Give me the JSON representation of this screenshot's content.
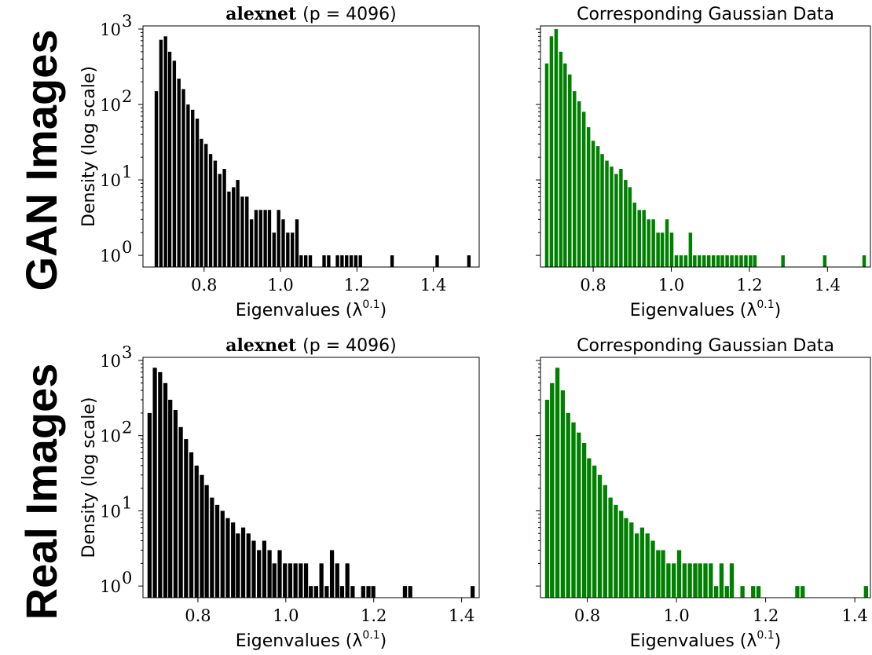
{
  "row_labels": [
    "GAN Images",
    "Real Images"
  ],
  "colors": {
    "real_bars": "#000000",
    "gaussian_bars": "#008000"
  },
  "chart_data": [
    {
      "type": "bar",
      "title_bold": "alexnet",
      "title_rest": "(p = 4096)",
      "xlabel": "Eigenvalues (λ",
      "xlabel_sup": "0.1",
      "xlabel_end": ")",
      "ylabel": "Density (log scale)",
      "yscale": "log",
      "ylim": [
        0.7,
        1100
      ],
      "xlim": [
        0.64,
        1.52
      ],
      "xticks": [
        0.8,
        1.0,
        1.2,
        1.4
      ],
      "xtick_labels": [
        "0.8",
        "1.0",
        "1.2",
        "1.4"
      ],
      "yticks": [
        1,
        10,
        100,
        1000
      ],
      "ytick_labels": [
        [
          "10",
          "0"
        ],
        [
          "10",
          "1"
        ],
        [
          "10",
          "2"
        ],
        [
          "10",
          "3"
        ]
      ],
      "color": "#000000",
      "bin_width": 0.01185,
      "x": [
        0.675,
        0.687,
        0.699,
        0.71,
        0.722,
        0.734,
        0.746,
        0.758,
        0.77,
        0.782,
        0.793,
        0.805,
        0.817,
        0.829,
        0.841,
        0.853,
        0.865,
        0.877,
        0.888,
        0.9,
        0.912,
        0.924,
        0.936,
        0.948,
        0.96,
        0.971,
        0.983,
        0.995,
        1.007,
        1.019,
        1.031,
        1.043,
        1.054,
        1.066,
        1.078,
        1.09,
        1.102,
        1.114,
        1.126,
        1.138,
        1.149,
        1.161,
        1.173,
        1.185,
        1.197,
        1.209,
        1.292,
        1.41,
        1.493
      ],
      "values": [
        150,
        720,
        800,
        500,
        380,
        220,
        160,
        100,
        85,
        65,
        35,
        30,
        22,
        18,
        12,
        14,
        7,
        8,
        10,
        6,
        6,
        3,
        4,
        4,
        4,
        4,
        2,
        4,
        3,
        2,
        2,
        3,
        1,
        1,
        1,
        0,
        0,
        1,
        1,
        0,
        1,
        1,
        1,
        1,
        1,
        1,
        1,
        1,
        1
      ]
    },
    {
      "type": "bar",
      "title": "Corresponding Gaussian Data",
      "xlabel": "Eigenvalues (λ",
      "xlabel_sup": "0.1",
      "xlabel_end": ")",
      "yscale": "log",
      "ylim": [
        0.7,
        1100
      ],
      "xlim": [
        0.665,
        1.51
      ],
      "xticks": [
        0.8,
        1.0,
        1.2,
        1.4
      ],
      "xtick_labels": [
        "0.8",
        "1.0",
        "1.2",
        "1.4"
      ],
      "yticks": [
        1,
        10,
        100,
        1000
      ],
      "color": "#008000",
      "bin_width": 0.01185,
      "x": [
        0.681,
        0.693,
        0.705,
        0.717,
        0.728,
        0.74,
        0.752,
        0.764,
        0.776,
        0.788,
        0.8,
        0.812,
        0.823,
        0.835,
        0.847,
        0.859,
        0.871,
        0.883,
        0.894,
        0.906,
        0.918,
        0.93,
        0.942,
        0.954,
        0.966,
        0.977,
        0.989,
        1.001,
        1.013,
        1.025,
        1.037,
        1.049,
        1.06,
        1.072,
        1.084,
        1.096,
        1.108,
        1.12,
        1.131,
        1.143,
        1.155,
        1.167,
        1.179,
        1.191,
        1.203,
        1.214,
        1.286,
        1.393,
        1.494
      ],
      "values": [
        350,
        800,
        1000,
        500,
        350,
        250,
        150,
        110,
        80,
        50,
        33,
        28,
        22,
        18,
        15,
        12,
        14,
        10,
        8,
        5,
        4,
        4,
        3,
        3,
        2,
        2,
        3,
        2,
        1,
        1,
        1,
        2,
        1,
        1,
        1,
        1,
        1,
        1,
        1,
        1,
        1,
        1,
        1,
        1,
        1,
        1,
        1,
        1,
        1
      ]
    },
    {
      "type": "bar",
      "title_bold": "alexnet",
      "title_rest": "(p = 4096)",
      "xlabel": "Eigenvalues (λ",
      "xlabel_sup": "0.1",
      "xlabel_end": ")",
      "ylabel": "Density (log scale)",
      "yscale": "log",
      "ylim": [
        0.7,
        1100
      ],
      "xlim": [
        0.675,
        1.44
      ],
      "xticks": [
        0.8,
        1.0,
        1.2,
        1.4
      ],
      "xtick_labels": [
        "0.8",
        "1.0",
        "1.2",
        "1.4"
      ],
      "yticks": [
        1,
        10,
        100,
        1000
      ],
      "ytick_labels": [
        [
          "10",
          "0"
        ],
        [
          "10",
          "1"
        ],
        [
          "10",
          "2"
        ],
        [
          "10",
          "3"
        ]
      ],
      "color": "#000000",
      "bin_width": 0.01185,
      "x": [
        0.69,
        0.702,
        0.714,
        0.726,
        0.737,
        0.749,
        0.761,
        0.773,
        0.785,
        0.797,
        0.809,
        0.82,
        0.832,
        0.844,
        0.856,
        0.868,
        0.88,
        0.891,
        0.903,
        0.915,
        0.927,
        0.939,
        0.951,
        0.963,
        0.974,
        0.986,
        0.998,
        1.01,
        1.022,
        1.034,
        1.046,
        1.057,
        1.069,
        1.081,
        1.093,
        1.105,
        1.117,
        1.128,
        1.14,
        1.152,
        1.164,
        1.176,
        1.188,
        1.199,
        1.271,
        1.283,
        1.425
      ],
      "values": [
        200,
        800,
        700,
        500,
        300,
        220,
        130,
        90,
        60,
        40,
        30,
        22,
        15,
        12,
        10,
        8,
        7,
        5,
        6,
        5,
        4,
        3,
        4,
        3,
        2,
        3,
        2,
        2,
        2,
        2,
        2,
        1,
        1,
        2,
        1,
        3,
        2,
        1,
        2,
        1,
        0,
        1,
        1,
        1,
        1,
        1,
        1
      ]
    },
    {
      "type": "bar",
      "title": "Corresponding Gaussian Data",
      "xlabel": "Eigenvalues (λ",
      "xlabel_sup": "0.1",
      "xlabel_end": ")",
      "yscale": "log",
      "ylim": [
        0.7,
        1100
      ],
      "xlim": [
        0.695,
        1.435
      ],
      "xticks": [
        0.8,
        1.0,
        1.2,
        1.4
      ],
      "xtick_labels": [
        "0.8",
        "1.0",
        "1.2",
        "1.4"
      ],
      "yticks": [
        1,
        10,
        100,
        1000
      ],
      "color": "#008000",
      "bin_width": 0.01185,
      "x": [
        0.71,
        0.721,
        0.733,
        0.745,
        0.757,
        0.769,
        0.781,
        0.793,
        0.804,
        0.816,
        0.828,
        0.84,
        0.852,
        0.864,
        0.876,
        0.887,
        0.899,
        0.911,
        0.923,
        0.935,
        0.947,
        0.959,
        0.97,
        0.982,
        0.994,
        1.006,
        1.018,
        1.03,
        1.042,
        1.053,
        1.065,
        1.077,
        1.089,
        1.101,
        1.113,
        1.124,
        1.148,
        1.172,
        1.184,
        1.271,
        1.283,
        1.425
      ],
      "values": [
        300,
        500,
        800,
        400,
        200,
        150,
        110,
        80,
        50,
        40,
        30,
        22,
        15,
        12,
        10,
        8,
        7,
        5,
        6,
        5,
        4,
        3,
        3,
        2,
        2,
        3,
        2,
        2,
        2,
        2,
        2,
        2,
        1,
        2,
        1,
        2,
        1,
        1,
        1,
        1,
        1,
        1
      ]
    }
  ]
}
